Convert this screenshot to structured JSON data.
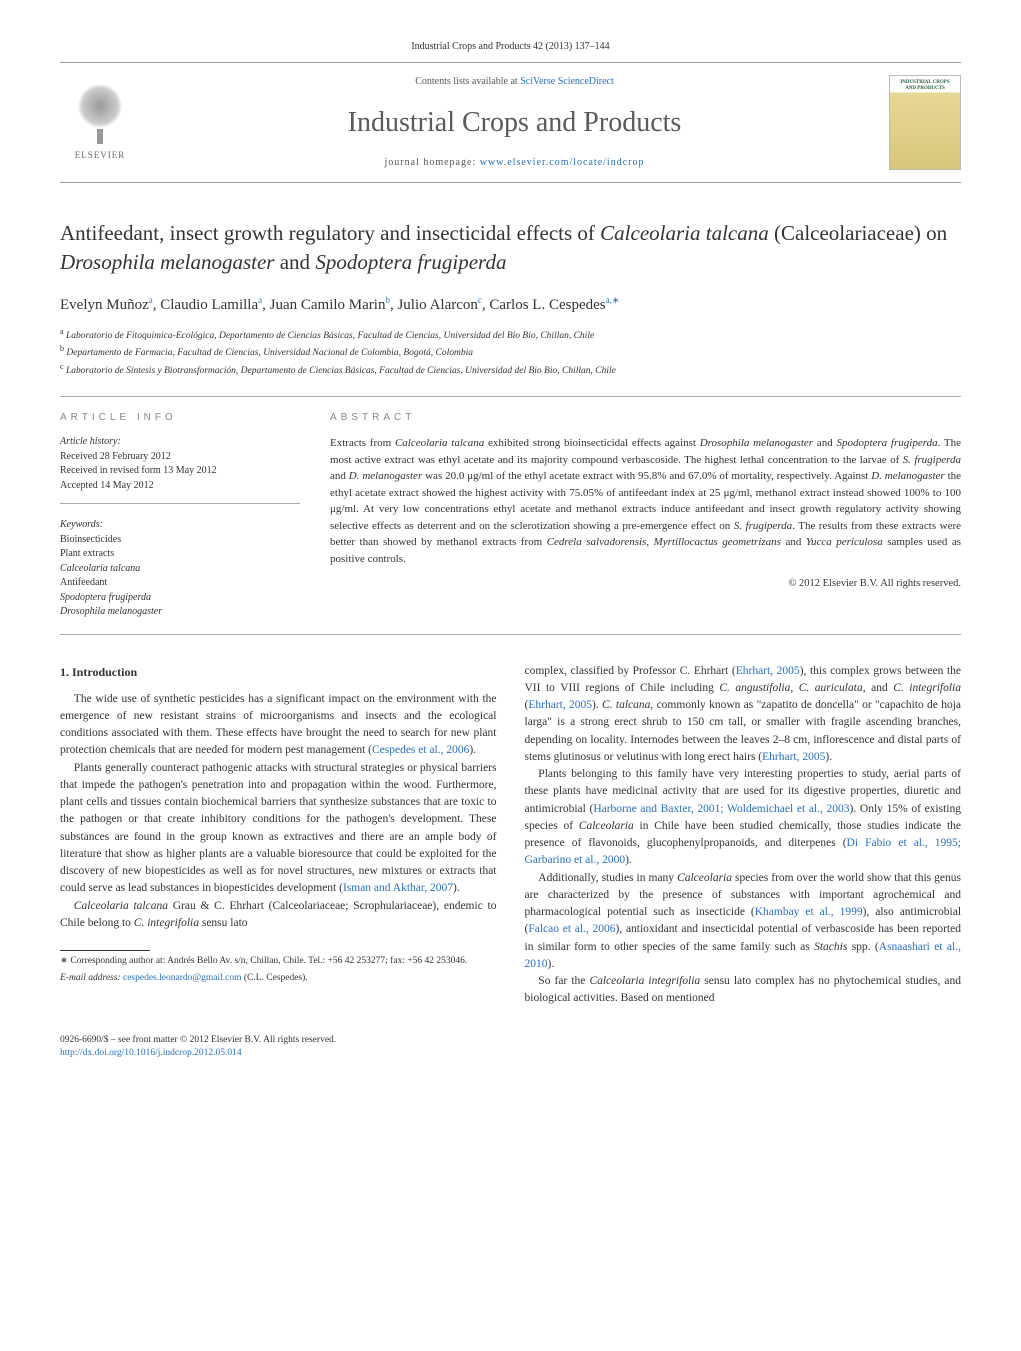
{
  "header": {
    "citation": "Industrial Crops and Products 42 (2013) 137–144",
    "contents_prefix": "Contents lists available at ",
    "contents_link": "SciVerse ScienceDirect",
    "journal_name": "Industrial Crops and Products",
    "homepage_prefix": "journal homepage: ",
    "homepage_link": "www.elsevier.com/locate/indcrop",
    "elsevier": "ELSEVIER",
    "cover_line1": "INDUSTRIAL CROPS",
    "cover_line2": "AND PRODUCTS"
  },
  "title": {
    "pre": "Antifeedant, insect growth regulatory and insecticidal effects of ",
    "sp1": "Calceolaria talcana",
    "mid1": " (Calceolariaceae) on ",
    "sp2": "Drosophila melanogaster",
    "mid2": " and ",
    "sp3": "Spodoptera frugiperda"
  },
  "authors": {
    "a1": "Evelyn Muñoz",
    "s1": "a",
    "a2": "Claudio Lamilla",
    "s2": "a",
    "a3": "Juan Camilo Marin",
    "s3": "b",
    "a4": "Julio Alarcon",
    "s4": "c",
    "a5": "Carlos L. Cespedes",
    "s5": "a,",
    "s5b": "∗"
  },
  "affiliations": {
    "a": "Laboratorio de Fitoquímica-Ecológica, Departamento de Ciencias Básicas, Facultad de Ciencias, Universidad del Bio Bio, Chillan, Chile",
    "b": "Departamento de Farmacia, Facultad de Ciencias, Universidad Nacional de Colombia, Bogotá, Colombia",
    "c": "Laboratorio de Síntesis y Biotransformación, Departamento de Ciencias Básicas, Facultad de Ciencias, Universidad del Bio Bio, Chillan, Chile"
  },
  "info": {
    "heading": "article info",
    "history_label": "Article history:",
    "received": "Received 28 February 2012",
    "revised": "Received in revised form 13 May 2012",
    "accepted": "Accepted 14 May 2012",
    "keywords_label": "Keywords:",
    "kw1": "Bioinsecticides",
    "kw2": "Plant extracts",
    "kw3": "Calceolaria talcana",
    "kw4": "Antifeedant",
    "kw5": "Spodoptera frugiperda",
    "kw6": "Drosophila melanogaster"
  },
  "abstractHeading": "abstract",
  "abstract": {
    "t1": "Extracts from ",
    "i1": "Calceolaria talcana",
    "t2": " exhibited strong bioinsecticidal effects against ",
    "i2": "Drosophila melanogaster",
    "t3": " and ",
    "i3": "Spodoptera frugiperda",
    "t4": ". The most active extract was ethyl acetate and its majority compound verbascoside. The highest lethal concentration to the larvae of ",
    "i4": "S. frugiperda",
    "t5": " and ",
    "i5": "D. melanogaster",
    "t6": " was 20.0 μg/ml of the ethyl acetate extract with 95.8% and 67.0% of mortality, respectively. Against ",
    "i6": "D. melanogaster",
    "t7": " the ethyl acetate extract showed the highest activity with 75.05% of antifeedant index at 25 μg/ml, methanol extract instead showed 100% to 100 μg/ml. At very low concentrations ethyl acetate and methanol extracts induce antifeedant and insect growth regulatory activity showing selective effects as deterrent and on the sclerotization showing a pre-emergence effect on ",
    "i7": "S. frugiperda",
    "t8": ". The results from these extracts were better than showed by methanol extracts from ",
    "i8": "Cedrela salvadorensis",
    "t9": ", ",
    "i9": "Myrtillocactus geometrizans",
    "t10": " and ",
    "i10": "Yucca periculosa",
    "t11": " samples used as positive controls."
  },
  "copyright": "© 2012 Elsevier B.V. All rights reserved.",
  "bodyHeading": "1. Introduction",
  "body": {
    "p1a": "The wide use of synthetic pesticides has a significant impact on the environment with the emergence of new resistant strains of microorganisms and insects and the ecological conditions associated with them. These effects have brought the need to search for new plant protection chemicals that are needed for modern pest management (",
    "p1c": "Cespedes et al., 2006",
    "p1b": ").",
    "p2a": "Plants generally counteract pathogenic attacks with structural strategies or physical barriers that impede the pathogen's penetration into and propagation within the wood. Furthermore, plant cells and tissues contain biochemical barriers that synthesize substances that are toxic to the pathogen or that create inhibitory conditions for the pathogen's development. These substances are found in the group known as extractives and there are an ample body of literature that show as higher plants are a valuable bioresource that could be exploited for the discovery of new biopesticides as well as for novel structures, new mixtures or extracts that could serve as lead substances in biopesticides development (",
    "p2c": "Isman and Akthar, 2007",
    "p2b": ").",
    "p3i1": "Calceolaria talcana",
    "p3a": " Grau & C. Ehrhart (Calceolariaceae; Scrophulariaceae), endemic to Chile belong to ",
    "p3i2": "C. integrifolia",
    "p3b": " sensu lato",
    "p4a": "complex, classified by Professor C. Ehrhart (",
    "p4c1": "Ehrhart, 2005",
    "p4b": "), this complex grows between the VII to VIII regions of Chile including ",
    "p4i1": "C. angustifolia",
    "p4t1": ", ",
    "p4i2": "C. auriculata",
    "p4t2": ", and ",
    "p4i3": "C. integrifolia",
    "p4t3": " (",
    "p4c2": "Ehrhart, 2005",
    "p4t4": "). ",
    "p4i4": "C. talcana",
    "p4d": ", commonly known as \"zapatito de doncella\" or \"capachito de hoja larga\" is a strong erect shrub to 150 cm tall, or smaller with fragile ascending branches, depending on locality. Internodes between the leaves 2–8 cm, inflorescence and distal parts of stems glutinosus or velutinus with long erect hairs (",
    "p4c3": "Ehrhart, 2005",
    "p4e": ").",
    "p5a": "Plants belonging to this family have very interesting properties to study, aerial parts of these plants have medicinal activity that are used for its digestive properties, diuretic and antimicrobial (",
    "p5c1": "Harborne and Baxter, 2001; Woldemichael et al., 2003",
    "p5b": "). Only 15% of existing species of ",
    "p5i1": "Calceolaria",
    "p5c": " in Chile have been studied chemically, those studies indicate the presence of flavonoids, glucophenylpropanoids, and diterpenes (",
    "p5c2": "Di Fabio et al., 1995; Garbarino et al., 2000",
    "p5d": ").",
    "p6a": "Additionally, studies in many ",
    "p6i1": "Calceolaria",
    "p6b": " species from over the world show that this genus are characterized by the presence of substances with important agrochemical and pharmacological potential such as insecticide (",
    "p6c1": "Khambay et al., 1999",
    "p6c": "), also antimicrobial (",
    "p6c2": "Falcao et al., 2006",
    "p6d": "), antioxidant and insecticidal potential of verbascoside has been reported in similar form to other species of the same family such as ",
    "p6i2": "Stachis",
    "p6e": " spp. (",
    "p6c3": "Asnaashari et al., 2010",
    "p6f": ").",
    "p7a": "So far the ",
    "p7i1": "Calceolaria integrifolia",
    "p7b": " sensu lato complex has no phytochemical studies, and biological activities. Based on mentioned"
  },
  "footnote": {
    "corr": "Corresponding author at: Andrés Bello Av. s/n, Chillan, Chile. Tel.: +56 42 253277; fax: +56 42 253046.",
    "email_label": "E-mail address:",
    "email": "cespedes.leonardo@gmail.com",
    "email_paren": "(C.L. Cespedes)."
  },
  "footer": {
    "line1": "0926-6690/$ – see front matter © 2012 Elsevier B.V. All rights reserved.",
    "doi": "http://dx.doi.org/10.1016/j.indcrop.2012.05.014"
  }
}
